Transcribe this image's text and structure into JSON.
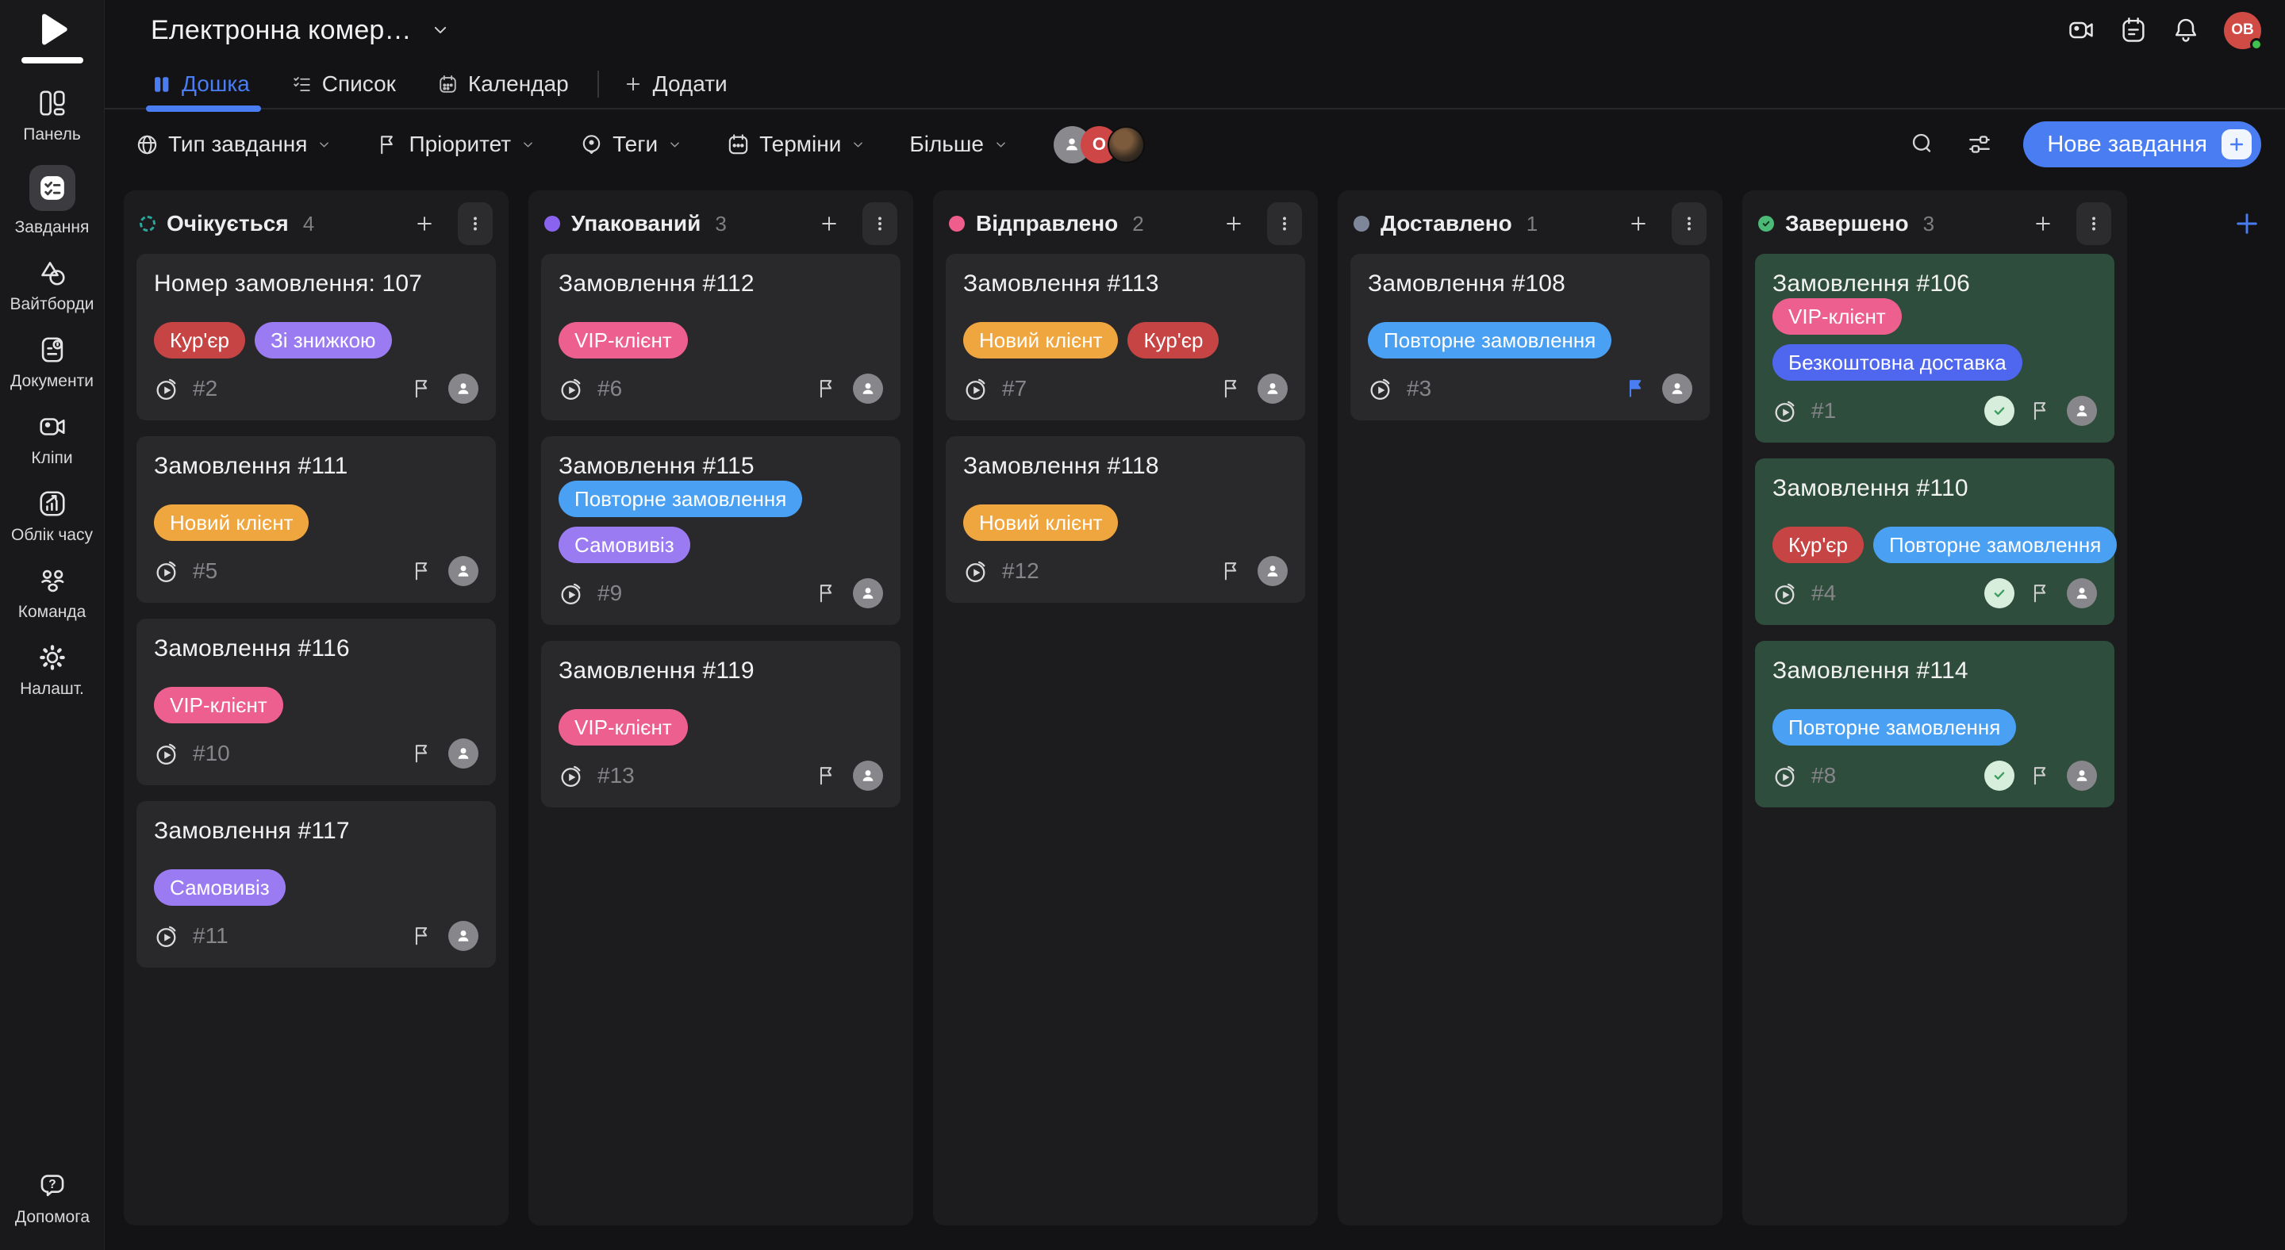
{
  "app": {
    "title": "Електронна комер…",
    "user_initials": "ОВ"
  },
  "sidebar": {
    "items": [
      {
        "label": "Панель",
        "icon": "dashboard-icon",
        "active": false
      },
      {
        "label": "Завдання",
        "icon": "tasks-icon",
        "active": true
      },
      {
        "label": "Вайтборди",
        "icon": "whiteboards-icon",
        "active": false
      },
      {
        "label": "Документи",
        "icon": "documents-icon",
        "active": false
      },
      {
        "label": "Кліпи",
        "icon": "clips-icon",
        "active": false
      },
      {
        "label": "Облік часу",
        "icon": "time-tracking-icon",
        "active": false
      },
      {
        "label": "Команда",
        "icon": "team-icon",
        "active": false
      },
      {
        "label": "Налашт.",
        "icon": "settings-icon",
        "active": false
      }
    ],
    "help": {
      "label": "Допомога",
      "icon": "help-icon"
    }
  },
  "tabs": {
    "items": [
      {
        "label": "Дошка",
        "icon": "board-icon",
        "active": true
      },
      {
        "label": "Список",
        "icon": "list-icon",
        "active": false
      },
      {
        "label": "Календар",
        "icon": "calendar-icon",
        "active": false
      }
    ],
    "add_label": "Додати"
  },
  "filters": {
    "items": [
      {
        "label": "Тип завдання",
        "icon": "task-type-icon"
      },
      {
        "label": "Пріоритет",
        "icon": "priority-flag-icon"
      },
      {
        "label": "Теги",
        "icon": "tags-icon"
      },
      {
        "label": "Терміни",
        "icon": "due-date-icon"
      },
      {
        "label": "Більше",
        "icon": null
      }
    ],
    "avatars": [
      {
        "type": "placeholder"
      },
      {
        "type": "initial",
        "text": "О",
        "color": "#cf4646"
      },
      {
        "type": "photo"
      }
    ]
  },
  "toolbar": {
    "new_task_label": "Нове завдання",
    "accent": "#4a7df2"
  },
  "tag_colors": {
    "red": "#c64444",
    "purple": "#9b7bf2",
    "orange": "#f0a63e",
    "pink": "#ec5f8e",
    "blue": "#4aa0f2",
    "indigo": "#4f66ee"
  },
  "board": {
    "green_card_bg": "#2f4d3c",
    "columns": [
      {
        "name": "Очікується",
        "count": "4",
        "accent": "#2aa79a",
        "indicator": "dashed",
        "cards": [
          {
            "title": "Номер замовлення: 107",
            "tag_rows": [
              [
                {
                  "label": "Кур'єр",
                  "color": "red"
                },
                {
                  "label": "Зі знижкою",
                  "color": "purple"
                }
              ]
            ],
            "id": "#2",
            "flagged": false,
            "done": false,
            "green": false
          },
          {
            "title": "Замовлення #111",
            "tag_rows": [
              [
                {
                  "label": "Новий клієнт",
                  "color": "orange"
                }
              ]
            ],
            "id": "#5",
            "flagged": false,
            "done": false,
            "green": false
          },
          {
            "title": "Замовлення #116",
            "tag_rows": [
              [
                {
                  "label": "VIP-клієнт",
                  "color": "pink"
                }
              ]
            ],
            "id": "#10",
            "flagged": false,
            "done": false,
            "green": false
          },
          {
            "title": "Замовлення #117",
            "tag_rows": [
              [
                {
                  "label": "Самовивіз",
                  "color": "purple"
                }
              ]
            ],
            "id": "#11",
            "flagged": false,
            "done": false,
            "green": false
          }
        ]
      },
      {
        "name": "Упакований",
        "count": "3",
        "accent": "#8a63f0",
        "indicator": "solid",
        "cards": [
          {
            "title": "Замовлення #112",
            "tag_rows": [
              [
                {
                  "label": "VIP-клієнт",
                  "color": "pink"
                }
              ]
            ],
            "id": "#6",
            "flagged": false,
            "done": false,
            "green": false
          },
          {
            "title": "Замовлення #115",
            "tag_rows": [
              [
                {
                  "label": "Повторне замовлення",
                  "color": "blue"
                }
              ],
              [
                {
                  "label": "Самовивіз",
                  "color": "purple"
                }
              ]
            ],
            "id": "#9",
            "flagged": false,
            "done": false,
            "green": false
          },
          {
            "title": "Замовлення #119",
            "tag_rows": [
              [
                {
                  "label": "VIP-клієнт",
                  "color": "pink"
                }
              ]
            ],
            "id": "#13",
            "flagged": false,
            "done": false,
            "green": false
          }
        ]
      },
      {
        "name": "Відправлено",
        "count": "2",
        "accent": "#ee5d8c",
        "indicator": "solid",
        "cards": [
          {
            "title": "Замовлення #113",
            "tag_rows": [
              [
                {
                  "label": "Новий клієнт",
                  "color": "orange"
                },
                {
                  "label": "Кур'єр",
                  "color": "red"
                }
              ]
            ],
            "id": "#7",
            "flagged": false,
            "done": false,
            "green": false
          },
          {
            "title": "Замовлення #118",
            "tag_rows": [
              [
                {
                  "label": "Новий клієнт",
                  "color": "orange"
                }
              ]
            ],
            "id": "#12",
            "flagged": false,
            "done": false,
            "green": false
          }
        ]
      },
      {
        "name": "Доставлено",
        "count": "1",
        "accent": "#7d8799",
        "indicator": "solid",
        "cards": [
          {
            "title": "Замовлення #108",
            "tag_rows": [
              [
                {
                  "label": "Повторне замовлення",
                  "color": "blue"
                }
              ]
            ],
            "id": "#3",
            "flagged": true,
            "done": false,
            "green": false
          }
        ]
      },
      {
        "name": "Завершено",
        "count": "3",
        "accent": "#4cba77",
        "indicator": "check",
        "cards": [
          {
            "title": "Замовлення #106",
            "tag_rows": [
              [
                {
                  "label": "VIP-клієнт",
                  "color": "pink"
                }
              ],
              [
                {
                  "label": "Безкоштовна доставка",
                  "color": "indigo"
                }
              ]
            ],
            "id": "#1",
            "flagged": false,
            "done": true,
            "green": true
          },
          {
            "title": "Замовлення #110",
            "tag_rows": [
              [
                {
                  "label": "Кур'єр",
                  "color": "red"
                },
                {
                  "label": "Повторне замовлення",
                  "color": "blue"
                }
              ]
            ],
            "id": "#4",
            "flagged": false,
            "done": true,
            "green": true
          },
          {
            "title": "Замовлення #114",
            "tag_rows": [
              [
                {
                  "label": "Повторне замовлення",
                  "color": "blue"
                }
              ]
            ],
            "id": "#8",
            "flagged": false,
            "done": true,
            "green": true
          }
        ]
      }
    ]
  }
}
